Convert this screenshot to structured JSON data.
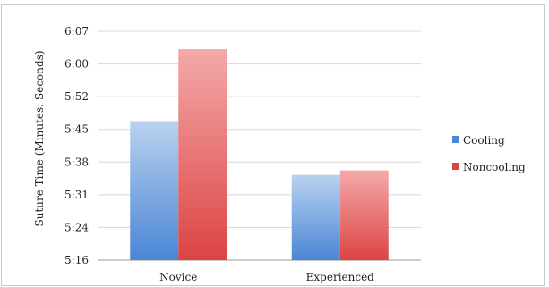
{
  "chart_data": {
    "type": "bar",
    "title": "",
    "ylabel": "Suture Time (Minutes: Seconds)",
    "xlabel": "",
    "categories": [
      "Novice",
      "Experienced"
    ],
    "y_tick_labels": [
      "5:16",
      "5:24",
      "5:31",
      "5:38",
      "5:45",
      "5:52",
      "6:00",
      "6:07"
    ],
    "ylim_seconds": [
      316,
      367
    ],
    "series": [
      {
        "name": "Cooling",
        "values_seconds": [
          347,
          335
        ],
        "values": [
          "5:47",
          "5:35"
        ]
      },
      {
        "name": "Noncooling",
        "values_seconds": [
          363,
          336
        ],
        "values": [
          "6:03",
          "5:36"
        ]
      }
    ],
    "grid": true,
    "legend_position": "right",
    "colors": {
      "Cooling": {
        "top": "#b9d2ee",
        "bottom": "#4a86d6"
      },
      "Noncooling": {
        "top": "#f4a9a9",
        "bottom": "#dc4444"
      },
      "gridline": "#d8d8d8"
    }
  }
}
